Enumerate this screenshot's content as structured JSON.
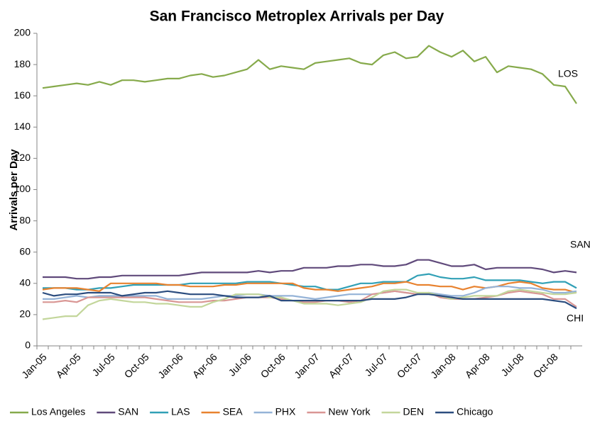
{
  "chart_data": {
    "type": "line",
    "title": "San Francisco Metroplex Arrivals per Day",
    "y_label": "Arrivals per Day",
    "categories": [
      "Jan-05",
      null,
      null,
      "Apr-05",
      null,
      null,
      "Jul-05",
      null,
      null,
      "Oct-05",
      null,
      null,
      "Jan-06",
      null,
      null,
      "Apr-06",
      null,
      null,
      "Jul-06",
      null,
      null,
      "Oct-06",
      null,
      null,
      "Jan-07",
      null,
      null,
      "Apr-07",
      null,
      null,
      "Jul-07",
      null,
      null,
      "Oct-07",
      null,
      null,
      "Jan-08",
      null,
      null,
      "Apr-08",
      null,
      null,
      "Jul-08",
      null,
      null,
      "Oct-08",
      null,
      null
    ],
    "ylim": [
      0,
      200
    ],
    "yticks": [
      0,
      20,
      40,
      60,
      80,
      100,
      120,
      140,
      160,
      180,
      200
    ],
    "grid": false,
    "legend": "bottom",
    "annotations": [
      "LOS",
      "SAN",
      "CHI"
    ],
    "series": [
      {
        "name": "Los Angeles",
        "color": "#86aa4b",
        "values": [
          165,
          166,
          167,
          168,
          167,
          169,
          167,
          170,
          170,
          169,
          170,
          171,
          171,
          173,
          174,
          172,
          173,
          175,
          177,
          183,
          177,
          179,
          178,
          177,
          181,
          182,
          183,
          184,
          181,
          180,
          186,
          188,
          184,
          185,
          192,
          188,
          185,
          189,
          182,
          185,
          175,
          179,
          178,
          177,
          174,
          167,
          166,
          155
        ]
      },
      {
        "name": "SAN",
        "color": "#604a7b",
        "values": [
          44,
          44,
          44,
          43,
          43,
          44,
          44,
          45,
          45,
          45,
          45,
          45,
          45,
          46,
          47,
          47,
          47,
          47,
          47,
          48,
          47,
          48,
          48,
          50,
          50,
          50,
          51,
          51,
          52,
          52,
          51,
          51,
          52,
          55,
          55,
          53,
          51,
          51,
          52,
          49,
          50,
          50,
          50,
          50,
          49,
          47,
          48,
          47
        ]
      },
      {
        "name": "LAS",
        "color": "#31a0b6",
        "values": [
          37,
          37,
          37,
          36,
          36,
          37,
          37,
          38,
          39,
          39,
          39,
          39,
          39,
          40,
          40,
          40,
          40,
          40,
          41,
          41,
          41,
          40,
          39,
          38,
          38,
          36,
          36,
          38,
          40,
          40,
          41,
          41,
          41,
          45,
          46,
          44,
          43,
          43,
          44,
          42,
          42,
          42,
          42,
          41,
          40,
          41,
          41,
          37
        ]
      },
      {
        "name": "SEA",
        "color": "#e8822f",
        "values": [
          36,
          37,
          37,
          37,
          36,
          35,
          40,
          40,
          40,
          40,
          40,
          39,
          39,
          38,
          38,
          38,
          39,
          39,
          40,
          40,
          40,
          40,
          40,
          37,
          36,
          36,
          35,
          36,
          37,
          38,
          40,
          40,
          41,
          39,
          39,
          38,
          38,
          36,
          38,
          37,
          38,
          40,
          41,
          40,
          37,
          36,
          36,
          34
        ]
      },
      {
        "name": "PHX",
        "color": "#95b3d7",
        "values": [
          30,
          30,
          31,
          32,
          31,
          32,
          32,
          32,
          32,
          32,
          32,
          30,
          30,
          30,
          30,
          31,
          32,
          32,
          33,
          33,
          32,
          32,
          32,
          31,
          30,
          31,
          32,
          33,
          33,
          33,
          34,
          35,
          34,
          33,
          34,
          33,
          32,
          32,
          34,
          37,
          38,
          38,
          37,
          37,
          36,
          34,
          34,
          35
        ]
      },
      {
        "name": "New York",
        "color": "#d99694",
        "values": [
          28,
          28,
          29,
          28,
          31,
          31,
          31,
          31,
          31,
          31,
          30,
          29,
          28,
          28,
          28,
          29,
          29,
          30,
          31,
          31,
          31,
          30,
          29,
          28,
          28,
          29,
          29,
          28,
          29,
          33,
          34,
          35,
          34,
          33,
          34,
          31,
          30,
          30,
          30,
          31,
          32,
          34,
          35,
          34,
          33,
          30,
          30,
          25
        ]
      },
      {
        "name": "DEN",
        "color": "#c3d69b",
        "values": [
          17,
          18,
          19,
          19,
          26,
          29,
          30,
          29,
          28,
          28,
          27,
          27,
          26,
          25,
          25,
          28,
          30,
          33,
          33,
          33,
          31,
          31,
          29,
          27,
          27,
          27,
          26,
          27,
          28,
          31,
          35,
          36,
          36,
          34,
          34,
          32,
          30,
          31,
          32,
          32,
          32,
          35,
          36,
          35,
          34,
          33,
          33,
          34
        ]
      },
      {
        "name": "Chicago",
        "color": "#2c4d7f",
        "values": [
          34,
          32,
          33,
          33,
          34,
          34,
          34,
          32,
          33,
          34,
          34,
          35,
          34,
          33,
          33,
          33,
          32,
          31,
          31,
          31,
          32,
          29,
          29,
          29,
          29,
          29,
          29,
          29,
          29,
          30,
          30,
          30,
          31,
          33,
          33,
          32,
          31,
          30,
          30,
          30,
          30,
          30,
          30,
          30,
          30,
          29,
          28,
          24
        ]
      }
    ]
  }
}
